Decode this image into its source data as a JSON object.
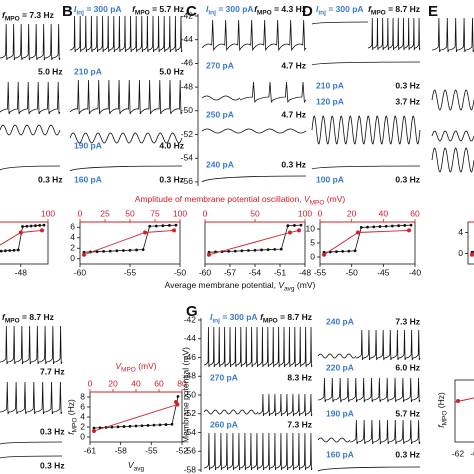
{
  "panel_labels": [
    "B",
    "C",
    "D",
    "E",
    "G"
  ],
  "panel_a": {
    "freqs": [
      [
        {
          "i": "f"
        },
        {
          "s": "MPO"
        },
        {
          "t": " = 7.3 Hz"
        }
      ],
      "5.0 Hz",
      "0.3 Hz"
    ]
  },
  "panel_b": {
    "rows": [
      {
        "current": [
          {
            "i": "I"
          },
          {
            "s": "inj"
          },
          {
            "t": " = 300 pA"
          }
        ],
        "freq": [
          {
            "i": "f"
          },
          {
            "s": "MPO"
          },
          {
            "t": " = 5.7 Hz"
          }
        ]
      },
      {
        "current": "210 pA",
        "freq": "5.0 Hz"
      },
      {
        "current": "190 pA",
        "freq": "4.0 Hz"
      },
      {
        "current": "160 pA",
        "freq": "0.3 Hz"
      }
    ]
  },
  "panel_c": {
    "rows": [
      {
        "current": [
          {
            "i": "I"
          },
          {
            "s": "inj"
          },
          {
            "t": " = 300 pA"
          }
        ],
        "freq": [
          {
            "i": "f"
          },
          {
            "s": "MPO"
          },
          {
            "t": " = 4.3 Hz"
          }
        ]
      },
      {
        "current": "270 pA",
        "freq": "4.7 Hz"
      },
      {
        "current": "250 pA",
        "freq": "4.7 Hz"
      },
      {
        "current": "240 pA",
        "freq": "0.3 Hz"
      }
    ],
    "yticks": [
      "-42",
      "-44",
      "-46",
      "-48",
      "-50",
      "-52",
      "-54",
      "-56"
    ]
  },
  "panel_d": {
    "rows": [
      {
        "current": [
          {
            "i": "I"
          },
          {
            "s": "inj"
          },
          {
            "t": " = 300 pA"
          }
        ],
        "freq": [
          {
            "i": "f"
          },
          {
            "s": "MPO"
          },
          {
            "t": " = 8.7 Hz"
          }
        ]
      },
      {
        "current": "210 pA",
        "freq": "0.3 Hz"
      },
      {
        "current": "120 pA",
        "freq": "3.7 Hz"
      },
      {
        "current": "100 pA",
        "freq": "0.3 Hz"
      }
    ]
  },
  "summary": {
    "top_title": [
      {
        "t": "Amplitude of membrane potential oscillation, "
      },
      {
        "i": "V"
      },
      {
        "s": "MPO"
      },
      {
        "t": " (mV)"
      }
    ],
    "bottom_title": [
      {
        "t": "Average membrane potential, "
      },
      {
        "i": "V"
      },
      {
        "s": "avg"
      },
      {
        "t": " (mV)"
      }
    ],
    "plot_a": {
      "top": [
        "50",
        "100"
      ],
      "bottom": [
        "-48"
      ]
    },
    "plot_b": {
      "top": [
        "0",
        "25",
        "50",
        "75",
        "100"
      ],
      "bottom": [
        "-60",
        "-55",
        "-50"
      ],
      "left": [
        "0",
        "2",
        "4",
        "6"
      ]
    },
    "plot_c": {
      "top": [
        "0",
        "50",
        "100"
      ],
      "bottom": [
        "-60",
        "-57",
        "-54",
        "-51",
        "-48"
      ]
    },
    "plot_d": {
      "top": [
        "0",
        "20",
        "40",
        "60"
      ],
      "bottom": [
        "-55",
        "-50",
        "-45",
        "-40"
      ],
      "left": [
        "0",
        "5",
        "10"
      ]
    },
    "plot_e": {
      "left": [
        "0",
        "4"
      ]
    }
  },
  "panel_f": {
    "freqs": [
      [
        {
          "i": "f"
        },
        {
          "s": "MPO"
        },
        {
          "t": " = 8.7 Hz"
        }
      ],
      "7.7 Hz",
      "0.3 Hz",
      "0.3 Hz"
    ],
    "plot": {
      "top_title": [
        {
          "i": "V"
        },
        {
          "s": "MPO"
        },
        {
          "t": " (mV)"
        }
      ],
      "top": [
        "0",
        "20",
        "40",
        "60",
        "80"
      ],
      "left_title": [
        {
          "i": "f"
        },
        {
          "s": "MPO"
        },
        {
          "t": " (Hz)"
        }
      ],
      "left": [
        "0",
        "2",
        "4",
        "6",
        "8"
      ],
      "bottom": [
        "-61",
        "-58",
        "-55",
        "-52"
      ],
      "bottom_title": [
        {
          "i": "V"
        },
        {
          "s": "avg"
        }
      ]
    }
  },
  "panel_g": {
    "ylabel": "Membrane potential (mV)",
    "yticks": [
      "-42",
      "-44",
      "-46",
      "-48",
      "-50",
      "-52",
      "-54",
      "-56",
      "-58"
    ],
    "left_rows": [
      {
        "current": [
          {
            "i": "I"
          },
          {
            "s": "inj"
          },
          {
            "t": " = 300 pA"
          }
        ],
        "freq": [
          {
            "i": "f"
          },
          {
            "s": "MPO"
          },
          {
            "t": " = 8.7 Hz"
          }
        ]
      },
      {
        "current": "270 pA",
        "freq": "8.3 Hz"
      },
      {
        "current": "260 pA",
        "freq": "7.3 Hz"
      }
    ],
    "right_rows": [
      {
        "current": "240 pA",
        "freq": "7.3 Hz"
      },
      {
        "current": "220 pA",
        "freq": "6.0 Hz"
      },
      {
        "current": "190 pA",
        "freq": "5.7 Hz"
      },
      {
        "current": "160 pA",
        "freq": "0.3 Hz"
      }
    ],
    "plot": {
      "left_title": [
        {
          "i": "f"
        },
        {
          "s": "MPO"
        },
        {
          "t": " (Hz)"
        }
      ],
      "bottom": [
        "-62",
        "-6"
      ]
    }
  }
}
